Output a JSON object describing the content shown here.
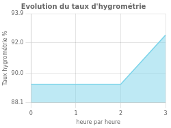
{
  "chart_data": {
    "type": "area",
    "title": "Evolution du taux d'hygrométrie",
    "xlabel": "heure par heure",
    "ylabel": "Taux hygrométrie %",
    "x": [
      0,
      2,
      3
    ],
    "values": [
      89.3,
      89.3,
      92.5
    ],
    "color": "#7dd4ea",
    "xlim": [
      0,
      3
    ],
    "ylim": [
      88.1,
      93.9
    ],
    "xticks": [
      0,
      1,
      2,
      3
    ],
    "yticks": [
      88.1,
      {
        "value": 90.0,
        "label": "90.0"
      },
      {
        "value": 92.0,
        "label": "92.0"
      },
      93.9
    ],
    "grid": true
  }
}
